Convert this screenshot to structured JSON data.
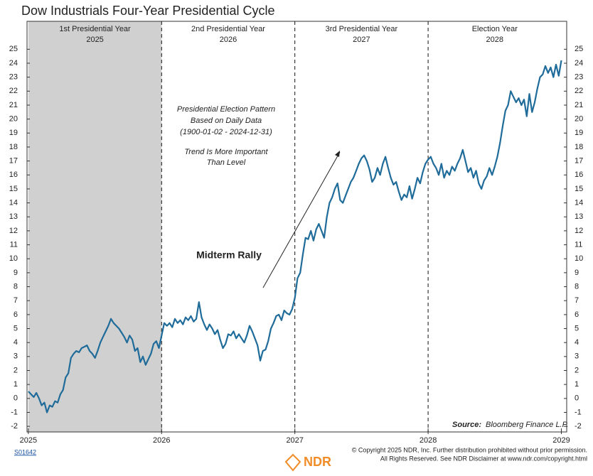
{
  "chart_data": {
    "type": "line",
    "title": "Dow Industrials Four-Year Presidential Cycle",
    "phases": [
      {
        "name": "1st Presidential Year",
        "year": "2025"
      },
      {
        "name": "2nd Presidential Year",
        "year": "2026"
      },
      {
        "name": "3rd Presidential Year",
        "year": "2027"
      },
      {
        "name": "Election Year",
        "year": "2028"
      }
    ],
    "shaded_xrange": [
      2025,
      2026
    ],
    "annotation_lines": [
      "Presidential Election Pattern",
      "Based on Daily Data",
      "(1900-01-02 - 2024-12-31)",
      "Trend Is More Important",
      "Than Level"
    ],
    "callout": "Midterm Rally",
    "source_label": "Source:",
    "source": "Bloomberg Finance L.P.",
    "chart_id": "S01642",
    "copyright": [
      "© Copyright 2025 NDR, Inc. Further distribution prohibited without prior permission.",
      "All Rights Reserved. See NDR Disclaimer at www.ndr.com/copyright.html"
    ],
    "logo": "NDR",
    "xlim": [
      2024.99,
      2029.04
    ],
    "xticks": [
      2025,
      2026,
      2027,
      2028,
      2029
    ],
    "ylim": [
      -2.4,
      27
    ],
    "yticks": [
      -2,
      -1,
      0,
      1,
      2,
      3,
      4,
      5,
      6,
      7,
      8,
      9,
      10,
      11,
      12,
      13,
      14,
      15,
      16,
      17,
      18,
      19,
      20,
      21,
      22,
      23,
      24,
      25
    ],
    "x": [
      2025,
      2025.02,
      2025.04,
      2025.06,
      2025.08,
      2025.1,
      2025.12,
      2025.14,
      2025.16,
      2025.18,
      2025.2,
      2025.22,
      2025.24,
      2025.26,
      2025.28,
      2025.3,
      2025.32,
      2025.34,
      2025.36,
      2025.38,
      2025.4,
      2025.42,
      2025.44,
      2025.46,
      2025.48,
      2025.5,
      2025.52,
      2025.54,
      2025.56,
      2025.58,
      2025.6,
      2025.62,
      2025.64,
      2025.66,
      2025.68,
      2025.7,
      2025.72,
      2025.74,
      2025.76,
      2025.78,
      2025.8,
      2025.82,
      2025.84,
      2025.86,
      2025.88,
      2025.9,
      2025.92,
      2025.94,
      2025.96,
      2025.98,
      2026,
      2026.02,
      2026.04,
      2026.06,
      2026.08,
      2026.1,
      2026.12,
      2026.14,
      2026.16,
      2026.18,
      2026.2,
      2026.22,
      2026.24,
      2026.26,
      2026.28,
      2026.3,
      2026.32,
      2026.34,
      2026.36,
      2026.38,
      2026.4,
      2026.42,
      2026.44,
      2026.46,
      2026.48,
      2026.5,
      2026.52,
      2026.54,
      2026.56,
      2026.58,
      2026.6,
      2026.62,
      2026.64,
      2026.66,
      2026.68,
      2026.7,
      2026.72,
      2026.74,
      2026.76,
      2026.78,
      2026.8,
      2026.82,
      2026.84,
      2026.86,
      2026.88,
      2026.9,
      2026.92,
      2026.94,
      2026.96,
      2026.98,
      2027,
      2027.02,
      2027.04,
      2027.06,
      2027.08,
      2027.1,
      2027.12,
      2027.14,
      2027.16,
      2027.18,
      2027.2,
      2027.22,
      2027.24,
      2027.26,
      2027.28,
      2027.3,
      2027.32,
      2027.34,
      2027.36,
      2027.38,
      2027.4,
      2027.42,
      2027.44,
      2027.46,
      2027.48,
      2027.5,
      2027.52,
      2027.54,
      2027.56,
      2027.58,
      2027.6,
      2027.62,
      2027.64,
      2027.66,
      2027.68,
      2027.7,
      2027.72,
      2027.74,
      2027.76,
      2027.78,
      2027.8,
      2027.82,
      2027.84,
      2027.86,
      2027.88,
      2027.9,
      2027.92,
      2027.94,
      2027.96,
      2027.98,
      2028,
      2028.02,
      2028.04,
      2028.06,
      2028.08,
      2028.1,
      2028.12,
      2028.14,
      2028.16,
      2028.18,
      2028.2,
      2028.22,
      2028.24,
      2028.26,
      2028.28,
      2028.3,
      2028.32,
      2028.34,
      2028.36,
      2028.38,
      2028.4,
      2028.42,
      2028.44,
      2028.46,
      2028.48,
      2028.5,
      2028.52,
      2028.54,
      2028.56,
      2028.58,
      2028.6,
      2028.62,
      2028.64,
      2028.66,
      2028.68,
      2028.7,
      2028.72,
      2028.74,
      2028.76,
      2028.78,
      2028.8,
      2028.82,
      2028.84,
      2028.86,
      2028.88,
      2028.9,
      2028.92,
      2028.94,
      2028.96,
      2028.98,
      2029
    ],
    "series": [
      {
        "color": "#1f6b99",
        "values": [
          0.5,
          0.3,
          0.1,
          0.4,
          0.0,
          -0.5,
          -0.3,
          -1.0,
          -0.5,
          -0.6,
          -0.2,
          -0.3,
          0.3,
          0.6,
          1.5,
          1.8,
          2.9,
          3.2,
          3.4,
          3.3,
          3.6,
          3.7,
          3.8,
          3.4,
          3.2,
          2.9,
          3.4,
          4.0,
          4.4,
          4.8,
          5.2,
          5.7,
          5.4,
          5.2,
          5.0,
          4.7,
          4.4,
          4.0,
          4.5,
          4.2,
          3.4,
          3.6,
          2.6,
          3.0,
          2.4,
          2.8,
          3.2,
          3.9,
          4.1,
          3.6,
          4.5,
          5.4,
          5.2,
          5.4,
          5.1,
          5.7,
          5.4,
          5.6,
          5.3,
          5.8,
          5.6,
          5.9,
          5.5,
          5.7,
          6.9,
          5.8,
          5.3,
          4.9,
          5.3,
          5.0,
          4.6,
          4.9,
          4.2,
          3.6,
          3.9,
          4.6,
          4.5,
          4.8,
          4.3,
          4.6,
          4.3,
          4.0,
          4.5,
          5.2,
          4.8,
          4.3,
          3.8,
          2.7,
          3.4,
          3.5,
          4.1,
          5.0,
          5.4,
          5.9,
          6.0,
          5.6,
          6.3,
          6.1,
          6.0,
          6.4,
          7.2,
          8.6,
          9.0,
          10.3,
          11.5,
          11.4,
          12.0,
          11.3,
          12.1,
          12.5,
          12.0,
          11.5,
          13.0,
          14.0,
          14.4,
          15.0,
          15.4,
          14.2,
          14.0,
          14.5,
          15.0,
          15.5,
          15.8,
          16.3,
          16.8,
          17.2,
          17.4,
          17.0,
          16.4,
          15.5,
          15.8,
          16.5,
          16.0,
          16.8,
          17.3,
          16.5,
          15.8,
          15.3,
          15.5,
          14.8,
          14.2,
          14.6,
          14.4,
          15.2,
          14.3,
          15.0,
          15.8,
          15.4,
          16.2,
          16.8,
          17.1,
          17.3,
          16.8,
          16.5,
          16.0,
          16.8,
          15.8,
          16.3,
          16.0,
          16.6,
          16.3,
          16.8,
          17.2,
          17.8,
          17.0,
          16.2,
          16.5,
          15.8,
          16.3,
          15.4,
          15.0,
          15.6,
          15.9,
          16.5,
          16.0,
          16.6,
          17.3,
          18.3,
          19.5,
          20.6,
          21.0,
          22.0,
          21.6,
          21.2,
          21.5,
          21.0,
          21.4,
          20.2,
          21.8,
          20.5,
          21.2,
          22.2,
          23.0,
          23.2,
          23.8,
          23.3,
          23.7,
          23.0,
          23.9,
          23.1,
          24.2
        ]
      }
    ]
  }
}
